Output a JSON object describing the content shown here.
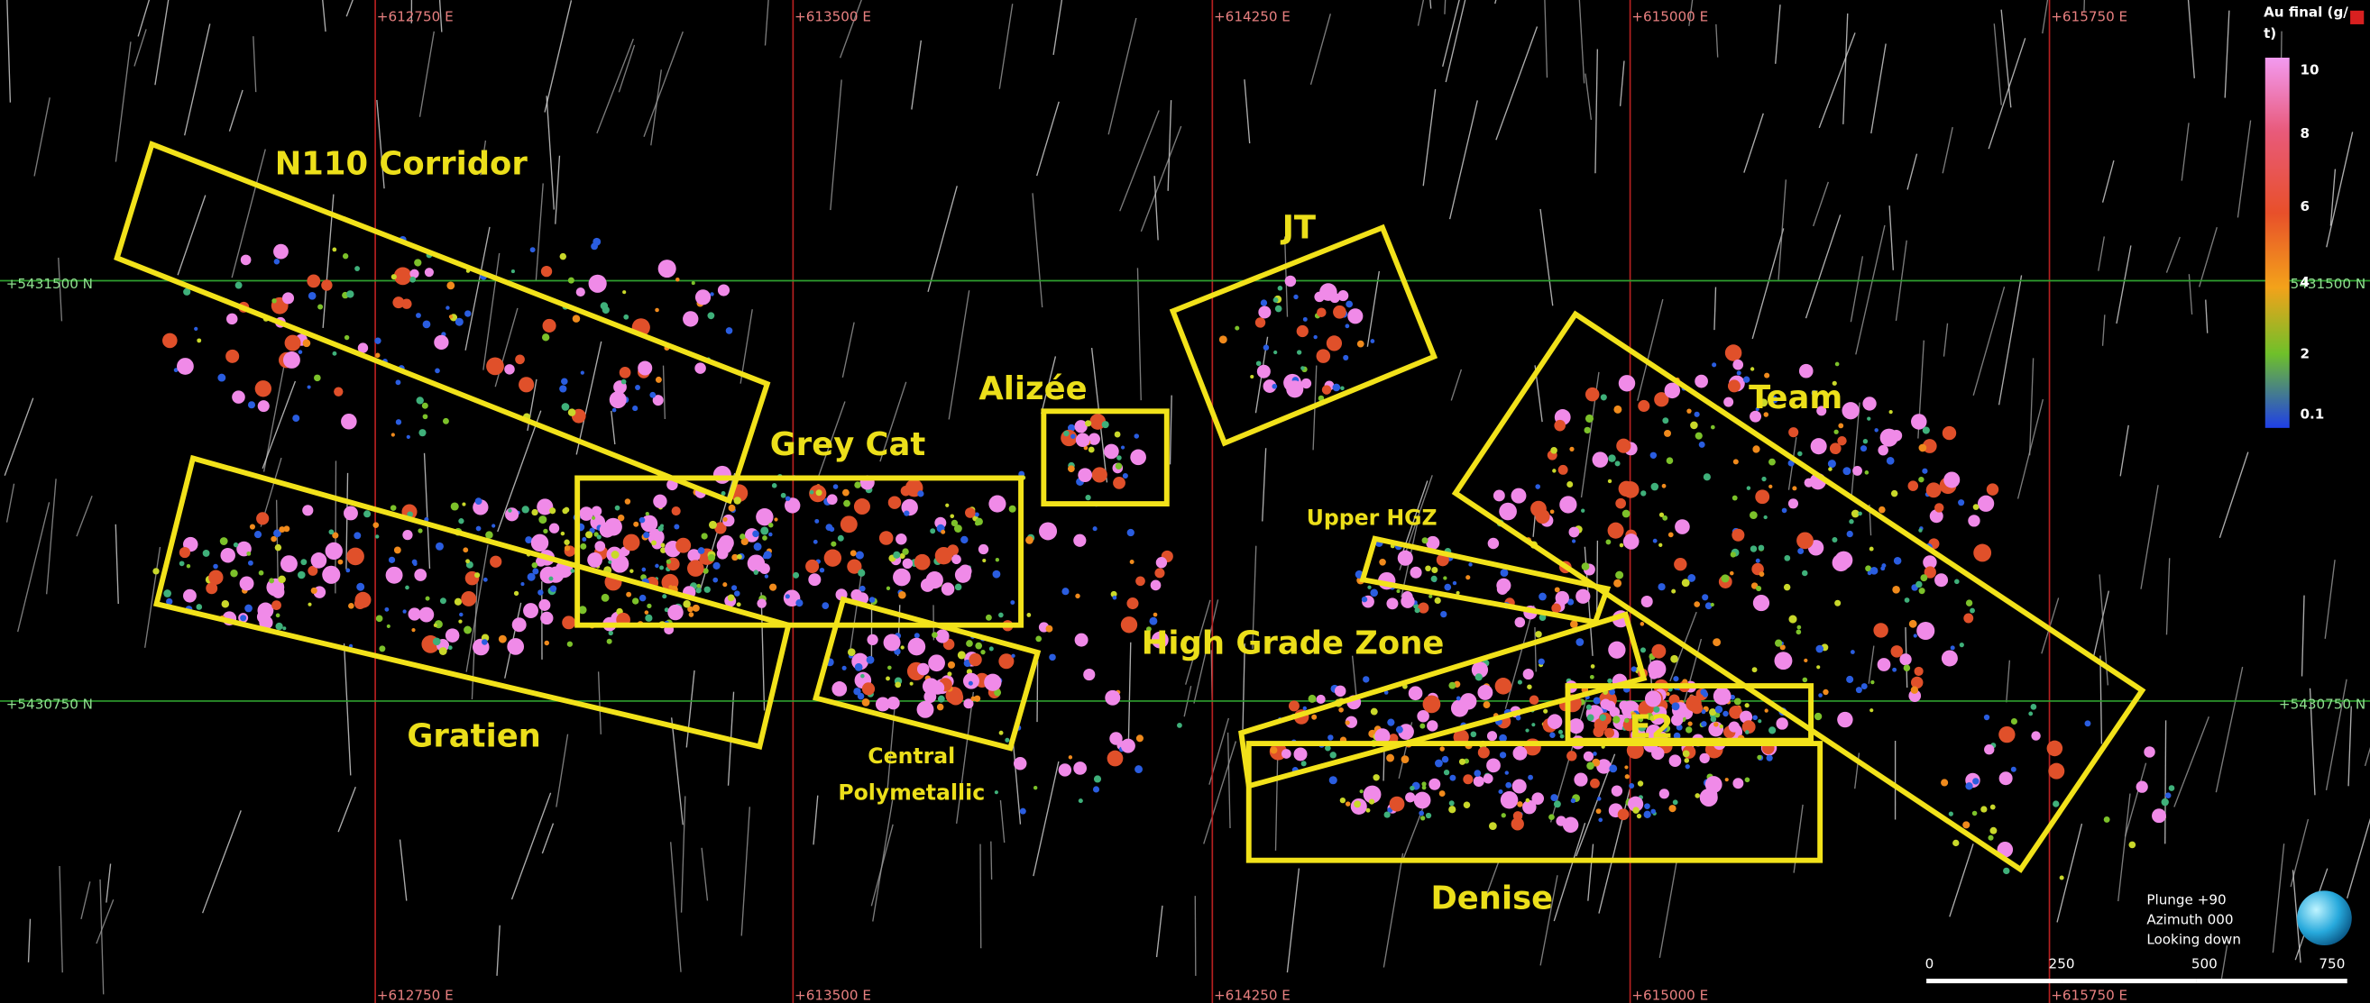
{
  "grid": {
    "eastings": [
      "+612750 E",
      "+613500 E",
      "+614250 E",
      "+615000 E",
      "+615750 E"
    ],
    "northings": [
      "+5431500 N",
      "+5430750 N"
    ]
  },
  "zones": [
    {
      "lines": [
        "N110 Corridor"
      ]
    },
    {
      "lines": [
        "Gratien"
      ]
    },
    {
      "lines": [
        "Grey Cat"
      ]
    },
    {
      "lines": [
        "Central",
        "Polymetallic"
      ]
    },
    {
      "lines": [
        "Alizée"
      ]
    },
    {
      "lines": [
        "JT"
      ]
    },
    {
      "lines": [
        "Team"
      ]
    },
    {
      "lines": [
        "Upper HGZ"
      ]
    },
    {
      "lines": [
        "High Grade Zone"
      ]
    },
    {
      "lines": [
        "E2"
      ]
    },
    {
      "lines": [
        "Denise"
      ]
    }
  ],
  "legend": {
    "title": [
      "Au final (g/",
      "t)"
    ],
    "ticks": [
      "10",
      "8",
      "6",
      "4",
      "2",
      "0.1"
    ]
  },
  "view": [
    "Plunge +90",
    "Azimuth 000",
    "Looking down"
  ],
  "scale_bar": [
    "0",
    "250",
    "500",
    "750"
  ]
}
